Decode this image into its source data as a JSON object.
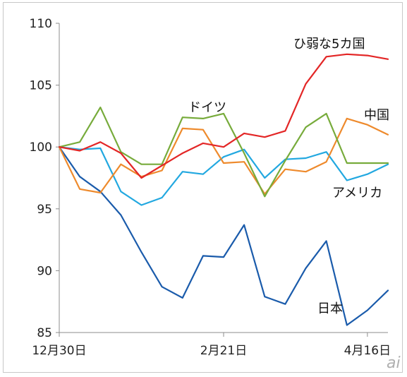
{
  "chart_data": {
    "type": "line",
    "x": [
      0,
      1,
      2,
      3,
      4,
      5,
      6,
      7,
      8,
      9,
      10,
      11,
      12,
      13,
      14,
      15,
      16
    ],
    "x_tick_labels": [
      {
        "x": 0,
        "label": "12月30日"
      },
      {
        "x": 8,
        "label": "2月21日"
      },
      {
        "x": 15,
        "label": "4月16日"
      }
    ],
    "ylim": [
      85,
      110
    ],
    "yticks": [
      85,
      90,
      95,
      100,
      105,
      110
    ],
    "grid": false,
    "series": [
      {
        "name": "ひ弱な5カ国",
        "color": "#e32626",
        "values": [
          100,
          99.7,
          100.4,
          99.5,
          97.5,
          98.5,
          99.5,
          100.3,
          100.0,
          101.1,
          100.8,
          101.3,
          105.1,
          107.3,
          107.5,
          107.4,
          107.1
        ]
      },
      {
        "name": "ドイツ",
        "color": "#77ab3b",
        "values": [
          100,
          100.4,
          103.2,
          99.6,
          98.6,
          98.6,
          102.4,
          102.3,
          102.7,
          99.5,
          96.0,
          98.9,
          101.6,
          102.7,
          98.7,
          98.7,
          98.7
        ]
      },
      {
        "name": "中国",
        "color": "#ee8a2c",
        "values": [
          100,
          96.6,
          96.3,
          98.6,
          97.6,
          98.1,
          101.5,
          101.4,
          98.7,
          98.8,
          96.2,
          98.2,
          98.0,
          98.8,
          102.3,
          101.8,
          101.0
        ]
      },
      {
        "name": "アメリカ",
        "color": "#22a8e0",
        "values": [
          100,
          99.8,
          99.9,
          96.4,
          95.3,
          95.9,
          98.0,
          97.8,
          99.2,
          99.8,
          97.5,
          99.0,
          99.1,
          99.6,
          97.3,
          97.8,
          98.6
        ]
      },
      {
        "name": "日本",
        "color": "#1a5bab",
        "values": [
          100,
          97.6,
          96.4,
          94.5,
          91.5,
          88.7,
          87.8,
          91.2,
          91.1,
          93.7,
          87.9,
          87.3,
          90.2,
          92.4,
          85.6,
          86.8,
          88.4
        ]
      }
    ]
  },
  "labels": {
    "weak5": "ひ弱な5カ国",
    "germany": "ドイツ",
    "china": "中国",
    "usa": "アメリカ",
    "japan": "日本"
  },
  "watermark": "ai"
}
